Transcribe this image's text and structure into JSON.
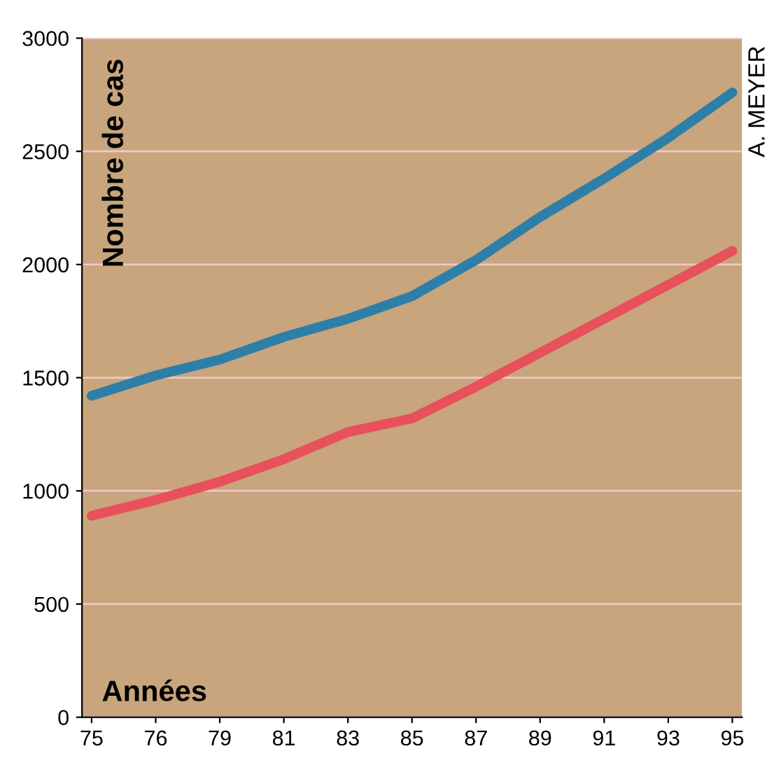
{
  "chart_data": {
    "type": "line",
    "xlabel": "Années",
    "ylabel": "Nombre de cas",
    "categories": [
      "75",
      "76",
      "79",
      "81",
      "83",
      "85",
      "87",
      "89",
      "91",
      "93",
      "95"
    ],
    "series": [
      {
        "color": "#2e7fa8",
        "values": [
          1420,
          1510,
          1580,
          1680,
          1760,
          1860,
          2020,
          2210,
          2380,
          2560,
          2760
        ]
      },
      {
        "color": "#e8505b",
        "values": [
          890,
          960,
          1040,
          1140,
          1260,
          1320,
          1460,
          1610,
          1760,
          1910,
          2060
        ]
      }
    ],
    "ylim": [
      0,
      3000
    ],
    "yticks": [
      0,
      500,
      1000,
      1500,
      2000,
      2500,
      3000
    ],
    "grid": "y",
    "marker": "none",
    "line_style": "solid",
    "annotations": [
      "A. MEYER"
    ]
  }
}
